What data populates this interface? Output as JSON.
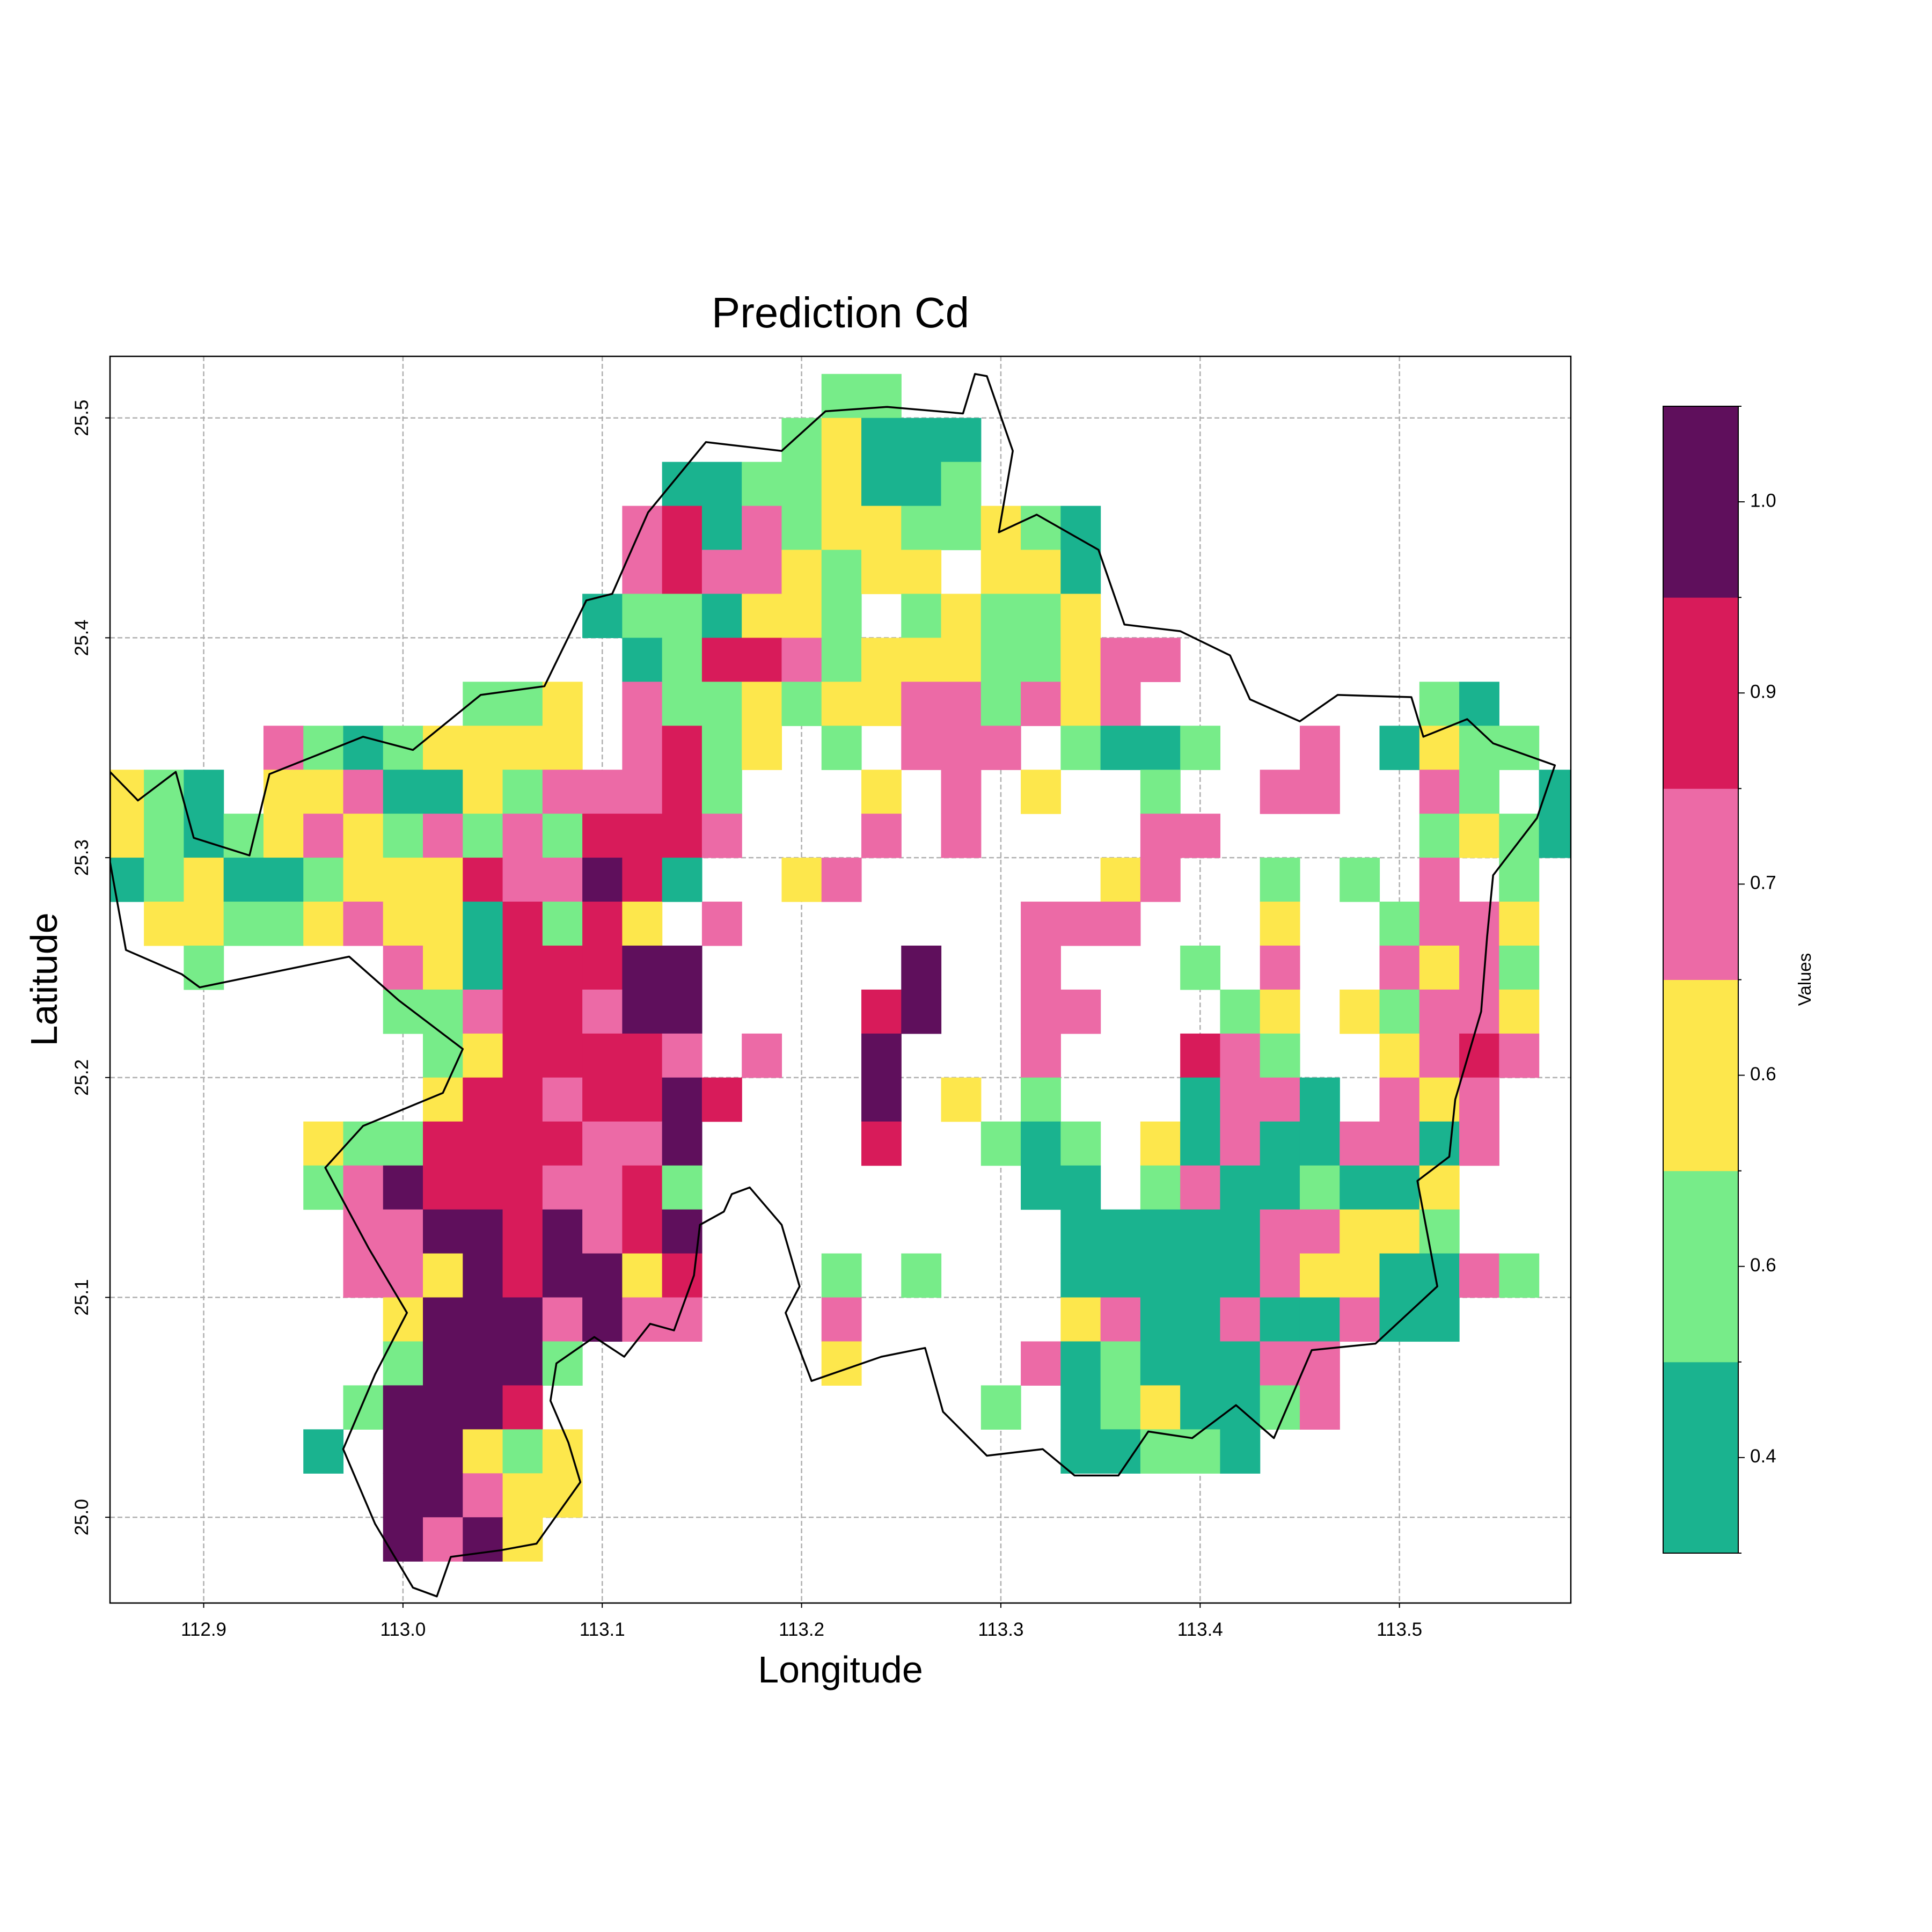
{
  "chart_data": {
    "type": "heatmap",
    "title": "Prediction Cd",
    "xlabel": "Longitude",
    "ylabel": "Latitude",
    "xlim": [
      112.853,
      113.586
    ],
    "ylim": [
      24.961,
      25.528
    ],
    "xticks": [
      112.9,
      {
        "value": 113,
        "label": "113.0"
      },
      113.1,
      113.2,
      113.3,
      113.4,
      113.5
    ],
    "yticks": [
      {
        "value": 25,
        "label": "25.0"
      },
      25.1,
      25.2,
      25.3,
      25.4,
      25.5
    ],
    "grid": true,
    "colorbar": {
      "label": "Values",
      "bounds": [
        0.34,
        0.48,
        0.62,
        0.66,
        0.74,
        1.0,
        1.02
      ],
      "colors": [
        "#1ab38f",
        "#77ec89",
        "#fde74c",
        "#ec6aa6",
        "#d81b5a",
        "#5f0f5c"
      ],
      "ticks": [
        {
          "value": 0.41,
          "label": "0.4"
        },
        {
          "value": 0.55,
          "label": "0.6"
        },
        {
          "value": 0.64,
          "label": "0.6"
        },
        0.7,
        {
          "value": 0.87,
          "label": "0.9"
        },
        {
          "value": 1.01,
          "label": "1.0"
        }
      ]
    },
    "lon": [
      112.86,
      112.88,
      112.9,
      112.92,
      112.94,
      112.96,
      112.98,
      113.0,
      113.02,
      113.04,
      113.06,
      113.08,
      113.1,
      113.12,
      113.14,
      113.16,
      113.18,
      113.2,
      113.22,
      113.24,
      113.26,
      113.28,
      113.3,
      113.32,
      113.34,
      113.36,
      113.38,
      113.4,
      113.42,
      113.44,
      113.46,
      113.48,
      113.5,
      113.52,
      113.54,
      113.56,
      113.58
    ],
    "lat": [
      25.51,
      25.49,
      25.47,
      25.45,
      25.43,
      25.41,
      25.39,
      25.37,
      25.35,
      25.33,
      25.31,
      25.29,
      25.27,
      25.25,
      25.23,
      25.21,
      25.19,
      25.17,
      25.15,
      25.13,
      25.11,
      25.09,
      25.07,
      25.05,
      25.03,
      25.01,
      24.99
    ],
    "z": [
      [
        null,
        null,
        null,
        null,
        null,
        null,
        null,
        null,
        null,
        null,
        null,
        null,
        null,
        null,
        null,
        null,
        null,
        null,
        0.55,
        0.55,
        null,
        null,
        null,
        null,
        null,
        null,
        null,
        null,
        null,
        null,
        null,
        null,
        null,
        null,
        null,
        null,
        null
      ],
      [
        null,
        null,
        null,
        null,
        null,
        null,
        null,
        null,
        null,
        null,
        null,
        null,
        null,
        null,
        null,
        null,
        null,
        0.55,
        0.64,
        0.4,
        0.4,
        0.4,
        null,
        null,
        null,
        null,
        null,
        null,
        null,
        null,
        null,
        null,
        null,
        null,
        null,
        null,
        null
      ],
      [
        null,
        null,
        null,
        null,
        null,
        null,
        null,
        null,
        null,
        null,
        null,
        null,
        null,
        null,
        0.4,
        0.4,
        0.55,
        0.55,
        0.64,
        0.4,
        0.4,
        0.55,
        null,
        null,
        null,
        null,
        null,
        null,
        null,
        null,
        null,
        null,
        null,
        null,
        null,
        null,
        null
      ],
      [
        null,
        null,
        null,
        null,
        null,
        null,
        null,
        null,
        null,
        null,
        null,
        null,
        null,
        0.7,
        0.9,
        0.4,
        0.7,
        0.55,
        0.64,
        0.64,
        0.55,
        0.55,
        0.64,
        0.55,
        0.4,
        null,
        null,
        null,
        null,
        null,
        null,
        null,
        null,
        null,
        null,
        null,
        null
      ],
      [
        null,
        null,
        null,
        null,
        null,
        null,
        null,
        null,
        null,
        null,
        null,
        null,
        null,
        0.7,
        0.9,
        0.7,
        0.7,
        0.64,
        0.55,
        0.64,
        0.64,
        null,
        0.64,
        0.64,
        0.4,
        null,
        null,
        null,
        null,
        null,
        null,
        null,
        null,
        null,
        null,
        null,
        null
      ],
      [
        null,
        null,
        null,
        null,
        null,
        null,
        null,
        null,
        null,
        null,
        null,
        null,
        0.4,
        0.55,
        0.55,
        0.4,
        0.64,
        0.64,
        0.55,
        null,
        0.55,
        0.64,
        0.55,
        0.55,
        0.64,
        null,
        null,
        null,
        null,
        null,
        null,
        null,
        null,
        null,
        null,
        null,
        null
      ],
      [
        null,
        null,
        null,
        null,
        null,
        null,
        null,
        null,
        null,
        null,
        null,
        null,
        null,
        0.4,
        0.55,
        0.9,
        0.9,
        0.7,
        0.55,
        0.64,
        0.64,
        0.64,
        0.55,
        0.55,
        0.64,
        0.7,
        0.7,
        null,
        null,
        null,
        null,
        null,
        null,
        null,
        null,
        null,
        null
      ],
      [
        null,
        null,
        null,
        null,
        null,
        null,
        null,
        null,
        null,
        0.55,
        0.55,
        0.64,
        null,
        0.7,
        0.55,
        0.55,
        0.64,
        0.55,
        0.64,
        0.64,
        0.7,
        0.7,
        0.55,
        0.7,
        0.64,
        0.7,
        null,
        null,
        null,
        null,
        null,
        null,
        null,
        0.55,
        0.4,
        null,
        null
      ],
      [
        null,
        null,
        null,
        null,
        0.7,
        0.55,
        0.4,
        0.55,
        0.64,
        0.64,
        0.64,
        0.64,
        null,
        0.7,
        0.9,
        0.55,
        0.64,
        null,
        0.55,
        null,
        0.7,
        0.7,
        0.7,
        null,
        0.55,
        0.4,
        0.4,
        0.55,
        null,
        null,
        0.7,
        null,
        0.4,
        0.64,
        0.55,
        0.55,
        null
      ],
      [
        0.64,
        0.55,
        0.4,
        null,
        0.64,
        0.64,
        0.7,
        0.4,
        0.4,
        0.64,
        0.55,
        0.7,
        0.7,
        0.7,
        0.9,
        0.55,
        null,
        null,
        null,
        0.64,
        null,
        0.7,
        null,
        0.64,
        null,
        null,
        0.55,
        null,
        null,
        0.7,
        0.7,
        null,
        null,
        0.7,
        0.55,
        null,
        0.4
      ],
      [
        0.64,
        0.55,
        0.4,
        0.55,
        0.64,
        0.7,
        0.64,
        0.55,
        0.7,
        0.55,
        0.7,
        0.55,
        0.9,
        0.9,
        0.9,
        0.7,
        null,
        null,
        null,
        0.7,
        null,
        0.7,
        null,
        null,
        null,
        null,
        0.7,
        0.7,
        null,
        null,
        null,
        null,
        null,
        0.55,
        0.64,
        0.55,
        0.4
      ],
      [
        0.4,
        0.55,
        0.64,
        0.4,
        0.4,
        0.55,
        0.64,
        0.64,
        0.64,
        0.9,
        0.7,
        0.7,
        1.01,
        0.9,
        0.4,
        null,
        null,
        0.64,
        0.7,
        null,
        null,
        null,
        null,
        null,
        null,
        0.64,
        0.7,
        null,
        null,
        0.55,
        null,
        0.55,
        null,
        0.7,
        null,
        0.55,
        null
      ],
      [
        null,
        0.64,
        0.64,
        0.55,
        0.55,
        0.64,
        0.7,
        0.64,
        0.64,
        0.4,
        0.9,
        0.55,
        0.9,
        0.64,
        null,
        0.7,
        null,
        null,
        null,
        null,
        null,
        null,
        null,
        0.7,
        0.7,
        0.7,
        null,
        null,
        null,
        0.64,
        null,
        null,
        0.55,
        0.7,
        0.7,
        0.64,
        null
      ],
      [
        null,
        null,
        0.55,
        null,
        null,
        null,
        null,
        0.7,
        0.64,
        0.4,
        0.9,
        0.9,
        0.9,
        1.01,
        1.01,
        null,
        null,
        null,
        null,
        null,
        1.01,
        null,
        null,
        0.7,
        null,
        null,
        null,
        0.55,
        null,
        0.7,
        null,
        null,
        0.7,
        0.64,
        0.7,
        0.55,
        null
      ],
      [
        null,
        null,
        null,
        null,
        null,
        null,
        null,
        0.55,
        0.55,
        0.7,
        0.9,
        0.9,
        0.7,
        1.01,
        1.01,
        null,
        null,
        null,
        null,
        0.9,
        1.01,
        null,
        null,
        0.7,
        0.7,
        null,
        null,
        null,
        0.55,
        0.64,
        null,
        0.64,
        0.55,
        0.7,
        0.7,
        0.64,
        null
      ],
      [
        null,
        null,
        null,
        null,
        null,
        null,
        null,
        null,
        0.55,
        0.64,
        0.9,
        0.9,
        0.9,
        0.9,
        0.7,
        null,
        0.7,
        null,
        null,
        1.01,
        null,
        null,
        null,
        0.7,
        null,
        null,
        null,
        0.9,
        0.7,
        0.55,
        null,
        null,
        0.64,
        0.7,
        0.9,
        0.7,
        null
      ],
      [
        null,
        null,
        null,
        null,
        null,
        null,
        null,
        null,
        0.64,
        0.9,
        0.9,
        0.7,
        0.9,
        0.9,
        1.01,
        0.9,
        null,
        null,
        null,
        1.01,
        null,
        0.64,
        null,
        0.55,
        null,
        null,
        null,
        0.4,
        0.7,
        0.7,
        0.4,
        null,
        0.7,
        0.64,
        0.7,
        null,
        null
      ],
      [
        null,
        null,
        null,
        null,
        null,
        0.64,
        0.55,
        0.55,
        0.9,
        0.9,
        0.9,
        0.9,
        0.7,
        0.7,
        1.01,
        null,
        null,
        null,
        null,
        0.9,
        null,
        null,
        0.55,
        0.4,
        0.55,
        null,
        0.64,
        0.4,
        0.7,
        0.4,
        0.4,
        0.7,
        0.7,
        0.4,
        0.7,
        null,
        null
      ],
      [
        null,
        null,
        null,
        null,
        null,
        0.55,
        0.7,
        1.01,
        0.9,
        0.9,
        0.9,
        0.7,
        0.7,
        0.9,
        0.55,
        null,
        null,
        null,
        null,
        null,
        null,
        null,
        null,
        0.4,
        0.4,
        null,
        0.55,
        0.7,
        0.4,
        0.4,
        0.55,
        0.4,
        0.4,
        0.64,
        null,
        null,
        null
      ],
      [
        null,
        null,
        null,
        null,
        null,
        null,
        0.7,
        0.7,
        1.01,
        1.01,
        0.9,
        1.01,
        0.7,
        0.9,
        1.01,
        null,
        null,
        null,
        null,
        null,
        null,
        null,
        null,
        null,
        0.4,
        0.4,
        0.4,
        0.4,
        0.4,
        0.7,
        0.7,
        0.64,
        0.64,
        0.55,
        null,
        null,
        null
      ],
      [
        null,
        null,
        null,
        null,
        null,
        null,
        0.7,
        0.7,
        0.64,
        1.01,
        0.9,
        1.01,
        1.01,
        0.64,
        0.9,
        null,
        null,
        null,
        0.55,
        null,
        0.55,
        null,
        null,
        null,
        0.4,
        0.4,
        0.4,
        0.4,
        0.4,
        0.7,
        0.64,
        0.64,
        0.4,
        0.4,
        0.7,
        0.55,
        null
      ],
      [
        null,
        null,
        null,
        null,
        null,
        null,
        null,
        0.64,
        1.01,
        1.01,
        1.01,
        0.7,
        1.01,
        0.7,
        0.7,
        null,
        null,
        null,
        0.7,
        null,
        null,
        null,
        null,
        null,
        0.64,
        0.7,
        0.4,
        0.4,
        0.7,
        0.4,
        0.4,
        0.7,
        0.4,
        0.4,
        null,
        null,
        null
      ],
      [
        null,
        null,
        null,
        null,
        null,
        null,
        null,
        0.55,
        1.01,
        1.01,
        1.01,
        0.55,
        null,
        null,
        null,
        null,
        null,
        null,
        0.64,
        null,
        null,
        null,
        null,
        0.7,
        0.4,
        0.55,
        0.4,
        0.4,
        0.4,
        0.7,
        0.7,
        null,
        null,
        null,
        null,
        null,
        null
      ],
      [
        null,
        null,
        null,
        null,
        null,
        null,
        0.55,
        1.01,
        1.01,
        1.01,
        0.9,
        null,
        null,
        null,
        null,
        null,
        null,
        null,
        null,
        null,
        null,
        null,
        0.55,
        null,
        0.4,
        0.55,
        0.64,
        0.4,
        0.4,
        0.55,
        0.7,
        null,
        null,
        null,
        null,
        null,
        null
      ],
      [
        null,
        null,
        null,
        null,
        null,
        0.4,
        null,
        1.01,
        1.01,
        0.64,
        0.55,
        0.64,
        null,
        null,
        null,
        null,
        null,
        null,
        null,
        null,
        null,
        null,
        null,
        null,
        0.4,
        0.4,
        0.55,
        0.55,
        0.4,
        null,
        null,
        null,
        null,
        null,
        null,
        null,
        null
      ],
      [
        null,
        null,
        null,
        null,
        null,
        null,
        null,
        1.01,
        1.01,
        0.7,
        0.64,
        0.64,
        null,
        null,
        null,
        null,
        null,
        null,
        null,
        null,
        null,
        null,
        null,
        null,
        null,
        null,
        null,
        null,
        null,
        null,
        null,
        null,
        null,
        null,
        null,
        null,
        null
      ],
      [
        null,
        null,
        null,
        null,
        null,
        null,
        null,
        1.01,
        0.7,
        1.01,
        0.64,
        null,
        null,
        null,
        null,
        null,
        null,
        null,
        null,
        null,
        null,
        null,
        null,
        null,
        null,
        null,
        null,
        null,
        null,
        null,
        null,
        null,
        null,
        null,
        null,
        null,
        null
      ]
    ],
    "boundary": {
      "lon": [
        112.853,
        112.867,
        112.886,
        112.895,
        112.923,
        112.933,
        112.98,
        113.005,
        113.039,
        113.071,
        113.092,
        113.105,
        113.123,
        113.152,
        113.19,
        113.212,
        113.243,
        113.281,
        113.287,
        113.293,
        113.306,
        113.299,
        113.318,
        113.349,
        113.362,
        113.39,
        113.415,
        113.425,
        113.45,
        113.469,
        113.506,
        113.512,
        113.534,
        113.547,
        113.578,
        113.569,
        113.547,
        113.544,
        113.541,
        113.528,
        113.525,
        113.509,
        113.519,
        113.488,
        113.456,
        113.437,
        113.418,
        113.396,
        113.374,
        113.359,
        113.337,
        113.321,
        113.293,
        113.271,
        113.262,
        113.24,
        113.205,
        113.192,
        113.199,
        113.19,
        113.174,
        113.165,
        113.161,
        113.149,
        113.146,
        113.136,
        113.124,
        113.111,
        113.096,
        113.077,
        113.074,
        113.083,
        113.089,
        113.067,
        113.049,
        113.024,
        113.017,
        113.005,
        112.986,
        112.97,
        112.986,
        113.002,
        112.983,
        112.961,
        112.98,
        113.02,
        113.03,
        112.998,
        112.973,
        112.898,
        112.889,
        112.861,
        112.853
      ],
      "lat": [
        25.339,
        25.326,
        25.339,
        25.309,
        25.301,
        25.338,
        25.355,
        25.349,
        25.374,
        25.378,
        25.417,
        25.42,
        25.457,
        25.489,
        25.485,
        25.503,
        25.505,
        25.502,
        25.52,
        25.519,
        25.485,
        25.448,
        25.456,
        25.44,
        25.406,
        25.403,
        25.392,
        25.372,
        25.362,
        25.374,
        25.373,
        25.355,
        25.363,
        25.352,
        25.342,
        25.318,
        25.292,
        25.264,
        25.23,
        25.19,
        25.164,
        25.153,
        25.105,
        25.079,
        25.076,
        25.036,
        25.051,
        25.036,
        25.039,
        25.019,
        25.019,
        25.031,
        25.028,
        25.048,
        25.077,
        25.073,
        25.062,
        25.093,
        25.105,
        25.133,
        25.15,
        25.147,
        25.139,
        25.133,
        25.11,
        25.085,
        25.088,
        25.073,
        25.082,
        25.07,
        25.053,
        25.034,
        25.016,
        24.988,
        24.985,
        24.982,
        24.964,
        24.968,
        24.997,
        25.031,
        25.065,
        25.093,
        25.122,
        25.159,
        25.178,
        25.193,
        25.213,
        25.235,
        25.255,
        25.241,
        25.247,
        25.258,
        25.298
      ]
    }
  }
}
